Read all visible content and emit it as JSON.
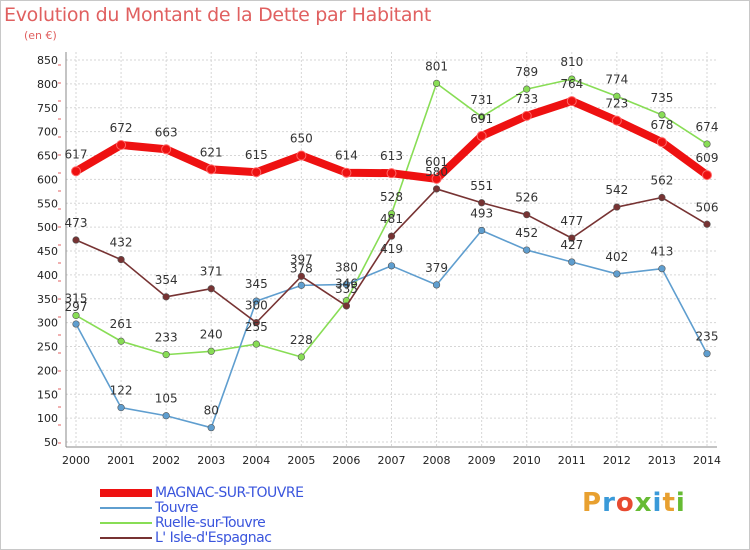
{
  "header": {
    "title": "Evolution du Montant de la Dette par Habitant",
    "unit": "(en €)"
  },
  "brand": {
    "text": "Proxiti",
    "colors": [
      "#e8a030",
      "#3a9ad9",
      "#e84a30",
      "#66bb33",
      "#3a9ad9",
      "#e8a030",
      "#66bb33"
    ]
  },
  "chart_data": {
    "type": "line",
    "title": "Evolution du Montant de la Dette par Habitant",
    "ylabel": "(en €)",
    "xlabel": "",
    "x": [
      "2000",
      "2001",
      "2002",
      "2003",
      "2004",
      "2005",
      "2006",
      "2007",
      "2008",
      "2009",
      "2010",
      "2011",
      "2012",
      "2013",
      "2014"
    ],
    "ylim": [
      50,
      850
    ],
    "yticks": [
      50,
      100,
      150,
      200,
      250,
      300,
      350,
      400,
      450,
      500,
      550,
      600,
      650,
      700,
      750,
      800,
      850
    ],
    "grid": true,
    "legend_position": "bottom-left",
    "series": [
      {
        "name": "MAGNAC-SUR-TOUVRE",
        "color": "#ee1111",
        "values": [
          617,
          672,
          663,
          621,
          615,
          650,
          614,
          613,
          601,
          691,
          733,
          764,
          723,
          678,
          609
        ],
        "labels": [
          "617",
          "672",
          "663",
          "621",
          "615",
          "650",
          "614",
          "613",
          "601",
          "691",
          "733",
          "764",
          "723",
          "678",
          "609"
        ]
      },
      {
        "name": "Touvre",
        "color": "#5f9ecf",
        "values": [
          297,
          122,
          105,
          80,
          345,
          378,
          380,
          419,
          379,
          493,
          452,
          427,
          402,
          413,
          235
        ],
        "labels": [
          "297",
          "122",
          "105",
          "80",
          "345",
          "378",
          "380",
          "419",
          "379",
          "493",
          "452",
          "427",
          "402",
          "413",
          "235"
        ]
      },
      {
        "name": "Ruelle-sur-Touvre",
        "color": "#88dd55",
        "values": [
          315,
          261,
          233,
          240,
          255,
          228,
          346,
          528,
          801,
          731,
          789,
          810,
          774,
          735,
          674
        ],
        "labels": [
          "315",
          "261",
          "233",
          "240",
          "255",
          "228",
          "346",
          "528",
          "801",
          "731",
          "789",
          "810",
          "774",
          "735",
          "674"
        ]
      },
      {
        "name": "L' Isle-d'Espagnac",
        "color": "#773333",
        "values": [
          473,
          432,
          354,
          371,
          300,
          397,
          335,
          481,
          580,
          551,
          526,
          477,
          542,
          562,
          506
        ],
        "labels": [
          "473",
          "432",
          "354",
          "371",
          "300",
          "397",
          "335",
          "481",
          "580",
          "551",
          "526",
          "477",
          "542",
          "562",
          "506"
        ]
      }
    ]
  }
}
